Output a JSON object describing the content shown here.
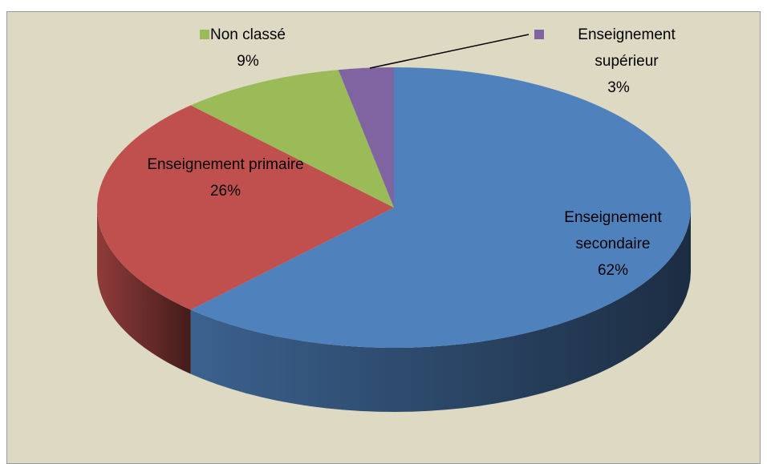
{
  "chart_data": {
    "type": "pie3d",
    "categories": [
      "Enseignement secondaire",
      "Enseignement primaire",
      "Non classé",
      "Enseignement supérieur"
    ],
    "values": [
      62,
      26,
      9,
      3
    ],
    "value_labels": [
      "62%",
      "26%",
      "9%",
      "3%"
    ],
    "colors": [
      "#4f81bd",
      "#c0504d",
      "#9bbb59",
      "#8064a2"
    ]
  }
}
